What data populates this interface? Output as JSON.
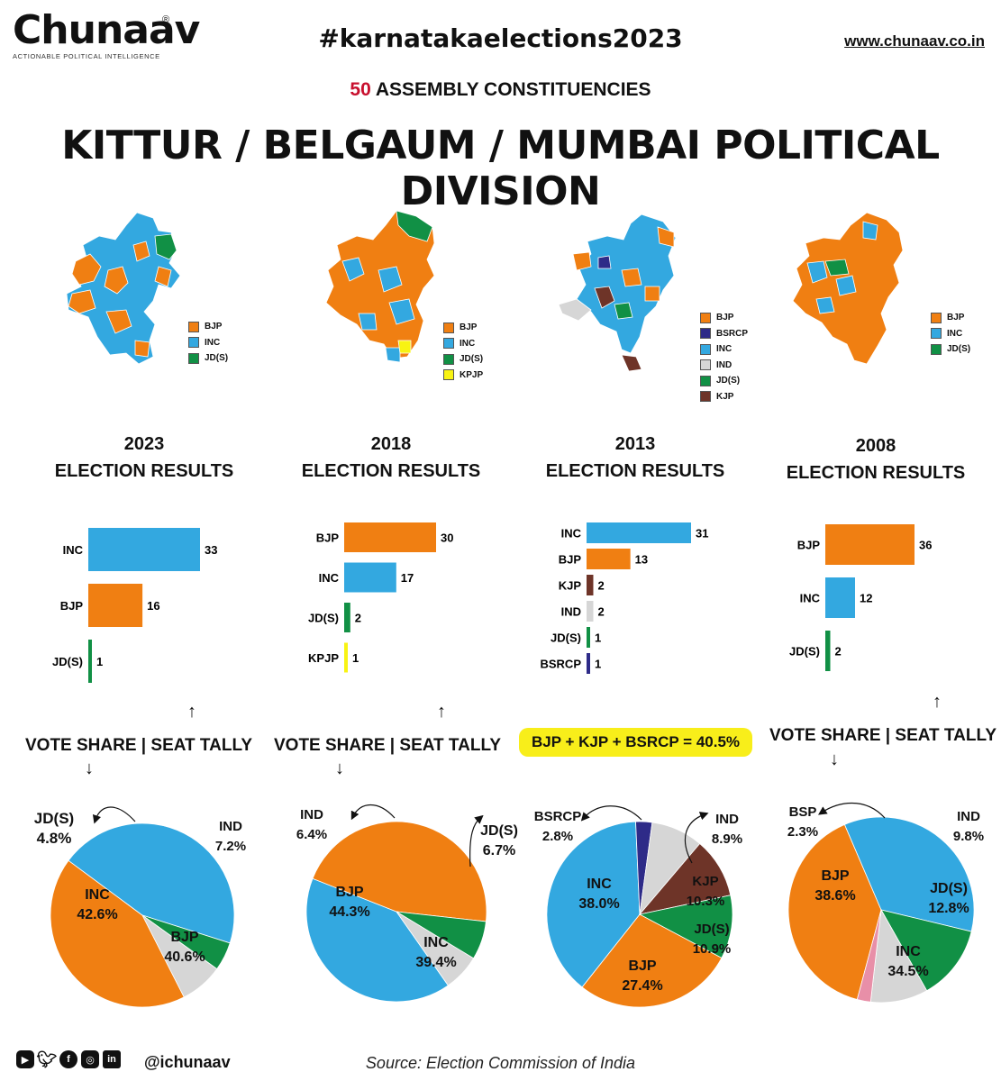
{
  "header": {
    "logo_text": "Chunaav",
    "logo_reg": "®",
    "logo_tagline": "ACTIONABLE POLITICAL INTELLIGENCE",
    "hashtag": "#karnatakaelections2023",
    "website": "www.chunaav.co.in",
    "subtitle_number": "50",
    "subtitle_text": "ASSEMBLY CONSTITUENCIES",
    "title": "KITTUR / BELGAUM / MUMBAI POLITICAL DIVISION"
  },
  "colors": {
    "BJP": "#f07f12",
    "INC": "#33a8e0",
    "JD(S)": "#119045",
    "KPJP": "#f8f313",
    "BSRCP": "#2e2b88",
    "IND": "#d6d6d6",
    "KJP": "#6e3428",
    "BSP": "#e88fa8",
    "map_border": "#ffffff",
    "highlight_bg": "#f8ee1a",
    "subtitle_number": "#c8102e"
  },
  "columns": [
    {
      "year": "2023",
      "heading": "ELECTION RESULTS",
      "map_legend": [
        "BJP",
        "INC",
        "JD(S)"
      ],
      "vote_share_label": "VOTE SHARE | SEAT TALLY",
      "pie_labels": [
        {
          "party": "JD(S)",
          "value": "4.8%"
        },
        {
          "party": "IND",
          "value": "7.2%"
        },
        {
          "party": "INC",
          "value": "42.6%"
        },
        {
          "party": "BJP",
          "value": "40.6%"
        }
      ]
    },
    {
      "year": "2018",
      "heading": "ELECTION RESULTS",
      "map_legend": [
        "BJP",
        "INC",
        "JD(S)",
        "KPJP"
      ],
      "vote_share_label": "VOTE SHARE | SEAT TALLY",
      "pie_labels": [
        {
          "party": "IND",
          "value": "6.4%"
        },
        {
          "party": "JD(S)",
          "value": "6.7%"
        },
        {
          "party": "BJP",
          "value": "44.3%"
        },
        {
          "party": "INC",
          "value": "39.4%"
        }
      ]
    },
    {
      "year": "2013",
      "heading": "ELECTION RESULTS",
      "map_legend": [
        "BJP",
        "BSRCP",
        "INC",
        "IND",
        "JD(S)",
        "KJP"
      ],
      "highlight": "BJP + KJP + BSRCP = 40.5%",
      "pie_labels": [
        {
          "party": "BSRCP",
          "value": "2.8%"
        },
        {
          "party": "IND",
          "value": "8.9%"
        },
        {
          "party": "KJP",
          "value": "10.3%"
        },
        {
          "party": "JD(S)",
          "value": "10.9%"
        },
        {
          "party": "INC",
          "value": "38.0%"
        },
        {
          "party": "BJP",
          "value": "27.4%"
        }
      ]
    },
    {
      "year": "2008",
      "heading": "ELECTION RESULTS",
      "map_legend": [
        "BJP",
        "INC",
        "JD(S)"
      ],
      "vote_share_label": "VOTE SHARE | SEAT TALLY",
      "pie_labels": [
        {
          "party": "BSP",
          "value": "2.3%"
        },
        {
          "party": "IND",
          "value": "9.8%"
        },
        {
          "party": "BJP",
          "value": "38.6%"
        },
        {
          "party": "JD(S)",
          "value": "12.8%"
        },
        {
          "party": "INC",
          "value": "34.5%"
        }
      ]
    }
  ],
  "chart_data": [
    {
      "type": "bar",
      "orientation": "horizontal",
      "year": "2023",
      "categories": [
        "INC",
        "BJP",
        "JD(S)"
      ],
      "values": [
        33,
        16,
        1
      ]
    },
    {
      "type": "bar",
      "orientation": "horizontal",
      "year": "2018",
      "categories": [
        "BJP",
        "INC",
        "JD(S)",
        "KPJP"
      ],
      "values": [
        30,
        17,
        2,
        1
      ]
    },
    {
      "type": "bar",
      "orientation": "horizontal",
      "year": "2013",
      "categories": [
        "INC",
        "BJP",
        "KJP",
        "IND",
        "JD(S)",
        "BSRCP"
      ],
      "values": [
        31,
        13,
        2,
        2,
        1,
        1
      ]
    },
    {
      "type": "bar",
      "orientation": "horizontal",
      "year": "2008",
      "categories": [
        "BJP",
        "INC",
        "JD(S)"
      ],
      "values": [
        36,
        12,
        2
      ]
    },
    {
      "type": "pie",
      "year": "2023",
      "categories": [
        "BJP",
        "INC",
        "JD(S)",
        "IND"
      ],
      "values": [
        40.6,
        42.6,
        4.8,
        7.2
      ]
    },
    {
      "type": "pie",
      "year": "2018",
      "categories": [
        "BJP",
        "INC",
        "JD(S)",
        "IND"
      ],
      "values": [
        44.3,
        39.4,
        6.7,
        6.4
      ]
    },
    {
      "type": "pie",
      "year": "2013",
      "categories": [
        "BJP",
        "INC",
        "JD(S)",
        "KJP",
        "IND",
        "BSRCP"
      ],
      "values": [
        27.4,
        38.0,
        10.9,
        10.3,
        8.9,
        2.8
      ]
    },
    {
      "type": "pie",
      "year": "2008",
      "categories": [
        "BJP",
        "INC",
        "JD(S)",
        "IND",
        "BSP"
      ],
      "values": [
        38.6,
        34.5,
        12.8,
        9.8,
        2.3
      ]
    }
  ],
  "footer": {
    "social_icons": [
      "youtube-icon",
      "twitter-icon",
      "facebook-icon",
      "instagram-icon",
      "linkedin-icon"
    ],
    "handle": "@ichunaav",
    "source": "Source: Election Commission of India"
  }
}
